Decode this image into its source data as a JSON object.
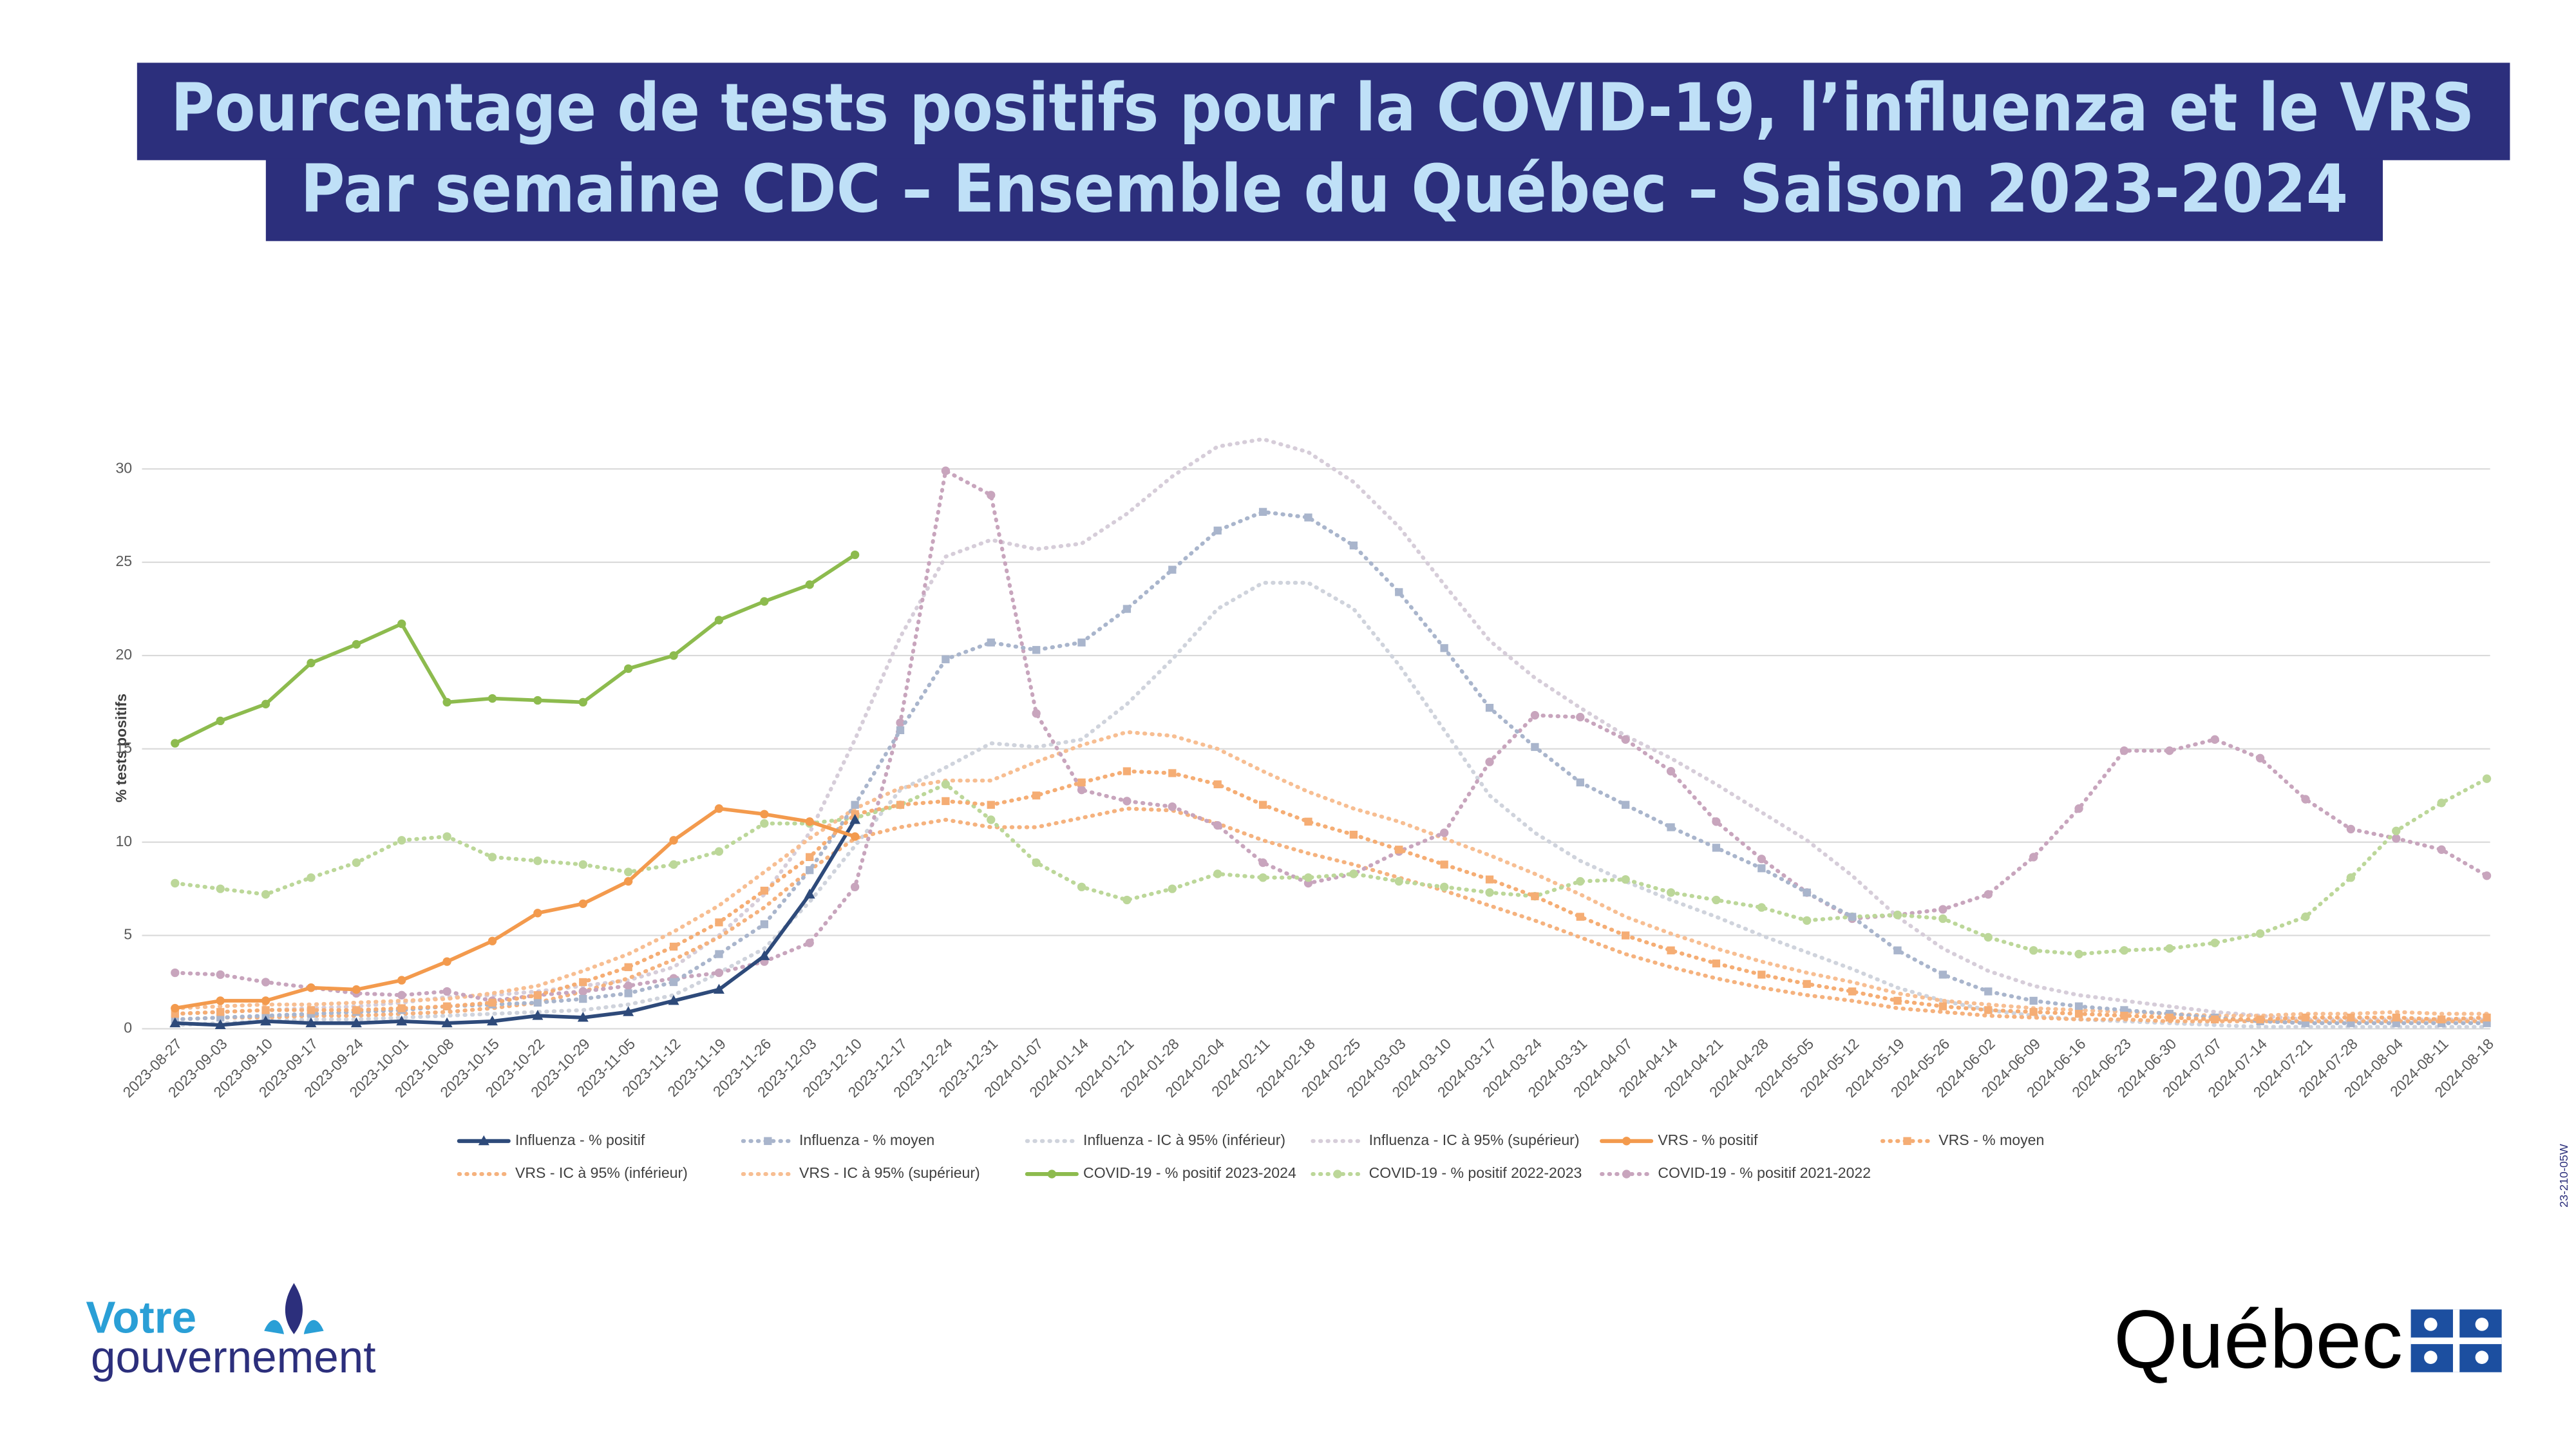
{
  "header": {
    "title_line1": "Pourcentage de tests positifs pour la COVID-19, l’influenza et le VRS",
    "title_line2": "Par semaine CDC – Ensemble du Québec – Saison 2023-2024"
  },
  "chart_data": {
    "type": "line",
    "y_label": "% tests positifs",
    "ylim": [
      0,
      30
    ],
    "yticks": [
      0,
      5,
      10,
      15,
      20,
      25,
      30
    ],
    "grid": true,
    "legend": "bottom",
    "categories": [
      "2023-08-27",
      "2023-09-03",
      "2023-09-10",
      "2023-09-17",
      "2023-09-24",
      "2023-10-01",
      "2023-10-08",
      "2023-10-15",
      "2023-10-22",
      "2023-10-29",
      "2023-11-05",
      "2023-11-12",
      "2023-11-19",
      "2023-11-26",
      "2023-12-03",
      "2023-12-10",
      "2023-12-17",
      "2023-12-24",
      "2023-12-31",
      "2024-01-07",
      "2024-01-14",
      "2024-01-21",
      "2024-01-28",
      "2024-02-04",
      "2024-02-11",
      "2024-02-18",
      "2024-02-25",
      "2024-03-03",
      "2024-03-10",
      "2024-03-17",
      "2024-03-24",
      "2024-03-31",
      "2024-04-07",
      "2024-04-14",
      "2024-04-21",
      "2024-04-28",
      "2024-05-05",
      "2024-05-12",
      "2024-05-19",
      "2024-05-26",
      "2024-06-02",
      "2024-06-09",
      "2024-06-16",
      "2024-06-23",
      "2024-06-30",
      "2024-07-07",
      "2024-07-14",
      "2024-07-21",
      "2024-07-28",
      "2024-08-04",
      "2024-08-11",
      "2024-08-18"
    ],
    "series": [
      {
        "name": "Influenza - % positif",
        "color": "#2e4a7a",
        "marker": "triangle",
        "dash": false,
        "values": [
          0.3,
          0.2,
          0.4,
          0.3,
          0.3,
          0.4,
          0.3,
          0.4,
          0.7,
          0.6,
          0.9,
          1.5,
          2.1,
          3.9,
          7.2,
          11.2,
          null,
          null,
          null,
          null,
          null,
          null,
          null,
          null,
          null,
          null,
          null,
          null,
          null,
          null,
          null,
          null,
          null,
          null,
          null,
          null,
          null,
          null,
          null,
          null,
          null,
          null,
          null,
          null,
          null,
          null,
          null,
          null,
          null,
          null,
          null,
          null
        ]
      },
      {
        "name": "Influenza - % moyen",
        "color": "#a9b5cc",
        "marker": "square",
        "dash": true,
        "values": [
          0.5,
          0.6,
          0.7,
          0.8,
          0.9,
          1.0,
          1.2,
          1.3,
          1.4,
          1.6,
          1.9,
          2.5,
          4.0,
          5.6,
          8.5,
          12.0,
          16.0,
          19.8,
          20.7,
          20.3,
          20.7,
          22.5,
          24.6,
          26.7,
          27.7,
          27.4,
          25.9,
          23.4,
          20.4,
          17.2,
          15.1,
          13.2,
          12.0,
          10.8,
          9.7,
          8.6,
          7.3,
          6.0,
          4.2,
          2.9,
          2.0,
          1.5,
          1.2,
          1.0,
          0.8,
          0.6,
          0.4,
          0.3,
          0.3,
          0.3,
          0.3,
          0.3
        ]
      },
      {
        "name": "Influenza - IC à 95% (inférieur)",
        "color": "#cfd3dc",
        "marker": "none",
        "dash": true,
        "values": [
          0.2,
          0.3,
          0.4,
          0.5,
          0.5,
          0.6,
          0.7,
          0.8,
          0.9,
          1.0,
          1.3,
          1.8,
          3.0,
          4.3,
          6.8,
          9.8,
          12.8,
          14.0,
          15.3,
          15.1,
          15.5,
          17.4,
          19.8,
          22.5,
          23.9,
          23.9,
          22.5,
          19.5,
          16.0,
          12.5,
          10.5,
          9.0,
          7.9,
          6.9,
          6.0,
          5.0,
          4.1,
          3.2,
          2.2,
          1.5,
          1.0,
          0.7,
          0.5,
          0.4,
          0.3,
          0.2,
          0.1,
          0.1,
          0.1,
          0.1,
          0.1,
          0.1
        ]
      },
      {
        "name": "Influenza - IC à 95% (supérieur)",
        "color": "#d6cdd9",
        "marker": "none",
        "dash": true,
        "values": [
          0.8,
          0.9,
          1.0,
          1.1,
          1.2,
          1.4,
          1.7,
          1.8,
          2.0,
          2.3,
          2.6,
          3.3,
          5.0,
          7.2,
          10.5,
          15.5,
          21.0,
          25.3,
          26.2,
          25.7,
          26.0,
          27.6,
          29.6,
          31.2,
          31.6,
          30.9,
          29.3,
          26.9,
          23.8,
          20.8,
          18.8,
          17.2,
          15.7,
          14.5,
          13.1,
          11.6,
          10.1,
          8.2,
          6.0,
          4.3,
          3.1,
          2.3,
          1.8,
          1.5,
          1.2,
          0.9,
          0.7,
          0.5,
          0.5,
          0.5,
          0.5,
          0.5
        ]
      },
      {
        "name": "VRS - % positif",
        "color": "#f39a4d",
        "marker": "circle",
        "dash": false,
        "values": [
          1.1,
          1.5,
          1.5,
          2.2,
          2.1,
          2.6,
          3.6,
          4.7,
          6.2,
          6.7,
          7.9,
          10.1,
          11.8,
          11.5,
          11.1,
          10.3,
          null,
          null,
          null,
          null,
          null,
          null,
          null,
          null,
          null,
          null,
          null,
          null,
          null,
          null,
          null,
          null,
          null,
          null,
          null,
          null,
          null,
          null,
          null,
          null,
          null,
          null,
          null,
          null,
          null,
          null,
          null,
          null,
          null,
          null,
          null,
          null
        ]
      },
      {
        "name": "VRS - % moyen",
        "color": "#f5ad74",
        "marker": "square",
        "dash": true,
        "values": [
          0.8,
          0.9,
          1.0,
          1.0,
          1.0,
          1.1,
          1.2,
          1.4,
          1.8,
          2.5,
          3.3,
          4.4,
          5.7,
          7.4,
          9.2,
          11.5,
          12.0,
          12.2,
          12.0,
          12.5,
          13.2,
          13.8,
          13.7,
          13.1,
          12.0,
          11.1,
          10.4,
          9.6,
          8.8,
          8.0,
          7.1,
          6.0,
          5.0,
          4.2,
          3.5,
          2.9,
          2.4,
          2.0,
          1.5,
          1.2,
          1.0,
          0.9,
          0.8,
          0.7,
          0.6,
          0.5,
          0.5,
          0.6,
          0.6,
          0.6,
          0.5,
          0.6
        ]
      },
      {
        "name": "VRS - IC à 95% (inférieur)",
        "color": "#f5b27e",
        "marker": "none",
        "dash": true,
        "values": [
          0.5,
          0.6,
          0.6,
          0.7,
          0.7,
          0.8,
          0.9,
          1.1,
          1.4,
          2.0,
          2.7,
          3.7,
          4.9,
          6.5,
          8.5,
          10.2,
          10.8,
          11.2,
          10.8,
          10.8,
          11.3,
          11.8,
          11.7,
          11.0,
          10.1,
          9.4,
          8.8,
          8.1,
          7.4,
          6.6,
          5.8,
          4.9,
          4.0,
          3.3,
          2.7,
          2.2,
          1.8,
          1.5,
          1.1,
          0.9,
          0.7,
          0.6,
          0.5,
          0.5,
          0.4,
          0.4,
          0.4,
          0.4,
          0.4,
          0.4,
          0.4,
          0.4
        ]
      },
      {
        "name": "VRS - IC à 95% (supérieur)",
        "color": "#f7be92",
        "marker": "none",
        "dash": true,
        "values": [
          1.1,
          1.2,
          1.3,
          1.3,
          1.4,
          1.5,
          1.6,
          1.9,
          2.3,
          3.1,
          4.0,
          5.2,
          6.6,
          8.4,
          10.2,
          11.8,
          12.9,
          13.3,
          13.3,
          14.3,
          15.2,
          15.9,
          15.7,
          15.0,
          13.8,
          12.7,
          11.8,
          11.1,
          10.2,
          9.3,
          8.3,
          7.2,
          6.0,
          5.1,
          4.3,
          3.6,
          3.0,
          2.5,
          1.9,
          1.5,
          1.3,
          1.1,
          1.0,
          0.9,
          0.8,
          0.7,
          0.7,
          0.8,
          0.8,
          0.9,
          0.8,
          0.8
        ]
      },
      {
        "name": "COVID-19 - % positif 2023-2024",
        "color": "#8dbb4e",
        "marker": "circle",
        "dash": false,
        "values": [
          15.3,
          16.5,
          17.4,
          19.6,
          20.6,
          21.7,
          17.5,
          17.7,
          17.6,
          17.5,
          19.3,
          20.0,
          21.9,
          22.9,
          23.8,
          25.4,
          null,
          null,
          null,
          null,
          null,
          null,
          null,
          null,
          null,
          null,
          null,
          null,
          null,
          null,
          null,
          null,
          null,
          null,
          null,
          null,
          null,
          null,
          null,
          null,
          null,
          null,
          null,
          null,
          null,
          null,
          null,
          null,
          null,
          null,
          null,
          null
        ]
      },
      {
        "name": "COVID-19 - % positif 2022-2023",
        "color": "#bcd799",
        "marker": "circle",
        "dash": true,
        "values": [
          7.8,
          7.5,
          7.2,
          8.1,
          8.9,
          10.1,
          10.3,
          9.2,
          9.0,
          8.8,
          8.4,
          8.8,
          9.5,
          11.0,
          11.0,
          11.3,
          12.0,
          13.1,
          11.2,
          8.9,
          7.6,
          6.9,
          7.5,
          8.3,
          8.1,
          8.1,
          8.3,
          7.9,
          7.6,
          7.3,
          7.1,
          7.9,
          8.0,
          7.3,
          6.9,
          6.5,
          5.8,
          6.0,
          6.1,
          5.9,
          4.9,
          4.2,
          4.0,
          4.2,
          4.3,
          4.6,
          5.1,
          6.0,
          8.1,
          10.6,
          12.1,
          13.4
        ]
      },
      {
        "name": "COVID-19 - % positif 2021-2022",
        "color": "#c8a5bd",
        "marker": "circle",
        "dash": true,
        "values": [
          3.0,
          2.9,
          2.5,
          2.2,
          1.9,
          1.8,
          2.0,
          1.5,
          1.8,
          2.0,
          2.3,
          2.7,
          3.0,
          3.6,
          4.6,
          7.6,
          16.4,
          29.9,
          28.6,
          16.9,
          12.8,
          12.2,
          11.9,
          10.9,
          8.9,
          7.8,
          8.3,
          9.5,
          10.5,
          14.3,
          16.8,
          16.7,
          15.5,
          13.8,
          11.1,
          9.1,
          7.3,
          5.9,
          6.1,
          6.4,
          7.2,
          9.2,
          11.8,
          14.9,
          14.9,
          15.5,
          14.5,
          12.3,
          10.7,
          10.2,
          9.6,
          8.2
        ]
      }
    ]
  },
  "side_code": "23-210-05W",
  "footer": {
    "left_logo_line1": "Votre",
    "left_logo_line2": "gouvernement",
    "right_logo": "Québec"
  }
}
